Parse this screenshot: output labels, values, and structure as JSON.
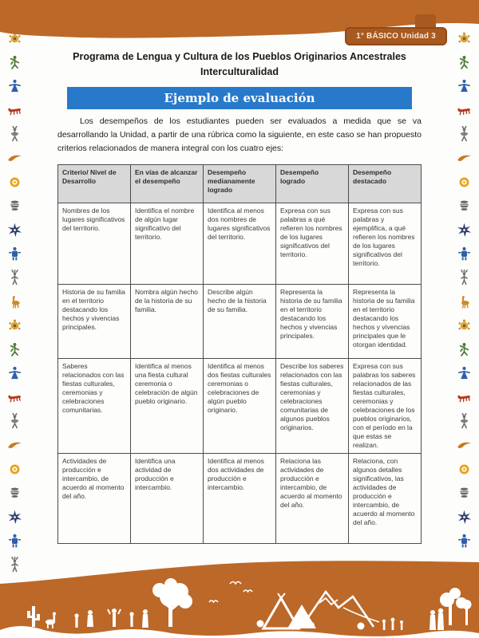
{
  "badge": {
    "label": "1° BÁSICO Unidad 3"
  },
  "header": {
    "title_line1": "Programa de Lengua y Cultura de los Pueblos Originarios Ancestrales",
    "title_line2": "Interculturalidad",
    "banner": "Ejemplo de evaluación"
  },
  "intro": "Los desempeños de los estudiantes pueden ser evaluados a medida que se va desarrollando la Unidad, a partir de una rúbrica como la siguiente, en este caso se han propuesto criterios relacionados de manera integral con los cuatro ejes:",
  "table": {
    "headers": [
      "Criterio/ Nivel de Desarrollo",
      "En vías de alcanzar el desempeño",
      "Desempeño medianamente logrado",
      "Desempeño logrado",
      "Desempeño destacado"
    ],
    "rows": [
      [
        "Nombres de los lugares significativos del territorio.",
        "Identifica el nombre de algún lugar significativo del territorio.",
        "Identifica al menos dos nombres de lugares significativos del territorio.",
        "Expresa con sus palabras a qué refieren los nombres de los lugares significativos del territorio.",
        "Expresa con sus palabras y ejemplifica, a qué refieren los nombres de los lugares significativos del territorio."
      ],
      [
        "Historia de su familia en el territorio destacando los hechos y vivencias principales.",
        "Nombra algún hecho de la historia de su familia.",
        "Describe algún hecho de la historia de su familia.",
        "Representa la historia de su familia en el territorio destacando los hechos y vivencias principales.",
        "Representa la historia de su familia en el territorio destacando los hechos y vivencias principales que le otorgan identidad."
      ],
      [
        "Saberes relacionados con las fiestas culturales, ceremonias y celebraciones comunitarias.",
        "Identifica al menos una fiesta cultural ceremonia o celebración de algún pueblo originario.",
        "Identifica al menos dos fiestas culturales ceremonias o celebraciones de algún pueblo originario.",
        "Describe los saberes relacionados con las fiestas culturales, ceremonias y celebraciones comunitarias de algunos pueblos originarios.",
        "Expresa con sus palabras los saberes relacionados de las fiestas culturales, ceremonias y celebraciones de los pueblos originarios, con el período en la que estas se realizan."
      ],
      [
        "Actividades de producción e intercambio, de acuerdo al momento del año.",
        "Identifica una actividad de producción e intercambio.",
        "Identifica al menos dos actividades de producción e intercambio.",
        "Relaciona las actividades de producción e intercambio, de acuerdo al momento del año.",
        "Relaciona, con algunos detalles significativos, las actividades de producción e intercambio, de acuerdo al momento del año."
      ]
    ]
  },
  "colors": {
    "orange_band": "#bc6828",
    "badge_bg": "#a8591f",
    "banner_blue": "#2879c9",
    "table_header_bg": "#d8d8d8",
    "table_border": "#4c4c4c"
  },
  "decor": {
    "side_icon_cycle": [
      "turtle",
      "dancer",
      "bird-man",
      "fox",
      "person",
      "condor",
      "sun",
      "vessel",
      "star",
      "blue-figure",
      "chief",
      "llama"
    ],
    "left_count": 23,
    "right_count": 22
  }
}
